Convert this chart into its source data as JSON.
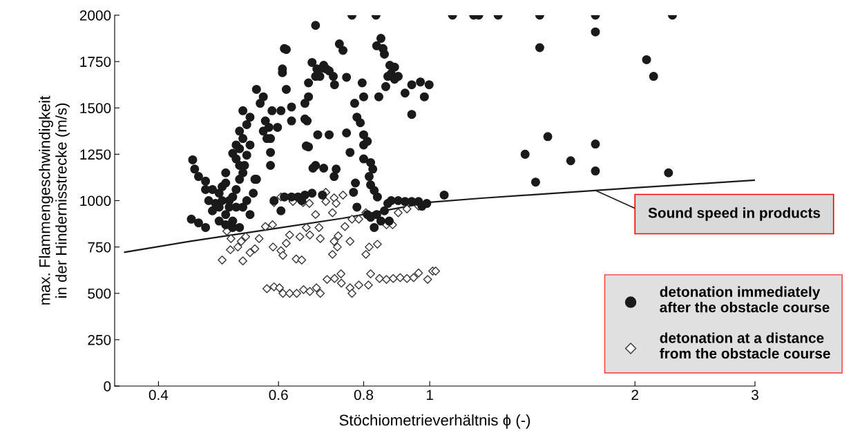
{
  "chart_data": {
    "type": "scatter",
    "xlabel": "Stöchiometrieverhältnis ϕ (-)",
    "ylabel": "max. Flammengeschwindigkeit\nin der Hindernisstrecke (m/s)",
    "log": "x",
    "xlim": [
      0.345,
      3
    ],
    "xticks": [
      0.4,
      0.6,
      0.8,
      1,
      2,
      3
    ],
    "ylim": [
      0,
      2000
    ],
    "yticks": [
      0,
      250,
      500,
      750,
      1000,
      1250,
      1500,
      1750,
      2000
    ],
    "grid": false,
    "legend": "bottom right",
    "annotations": [
      {
        "text": "Sound speed in products",
        "x": 1.75,
        "y": 1055
      }
    ],
    "series": [
      {
        "name": "detonation immediately\nafter the obstacle course",
        "marker": "circle",
        "color": "#1a1a1a",
        "x": [
          0.449,
          0.452,
          0.458,
          0.469,
          0.447,
          0.458,
          0.469,
          0.48,
          0.485,
          0.491,
          0.496,
          0.502,
          0.508,
          0.514,
          0.52,
          0.526,
          0.532,
          0.526,
          0.52,
          0.514,
          0.52,
          0.526,
          0.539,
          0.545,
          0.532,
          0.557,
          0.564,
          0.57,
          0.57,
          0.577,
          0.584,
          0.584,
          0.557,
          0.491,
          0.502,
          0.514,
          0.526,
          0.52,
          0.508,
          0.496,
          0.532,
          0.539,
          0.551,
          0.545,
          0.514,
          0.502,
          0.48,
          0.469,
          0.539,
          0.545,
          0.532,
          0.526,
          0.535,
          0.502,
          0.491,
          0.474,
          0.554,
          0.574,
          0.587,
          0.581,
          0.584,
          0.598,
          0.605,
          0.612,
          0.616,
          0.616,
          0.608,
          0.608,
          0.664,
          0.664,
          0.672,
          0.68,
          0.68,
          0.683,
          0.69,
          0.696,
          0.699,
          0.705,
          0.712,
          0.722,
          0.725,
          0.755,
          0.746,
          0.737,
          0.769,
          0.764,
          0.627,
          0.627,
          0.656,
          0.659,
          0.68,
          0.685,
          0.661,
          0.664,
          0.656,
          0.674,
          0.699,
          0.729,
          0.8,
          0.834,
          0.848,
          0.836,
          0.854,
          0.858,
          0.868,
          0.874,
          0.888,
          0.878,
          0.888,
          0.899,
          0.92,
          0.941,
          0.969,
          0.998,
          0.982,
          0.941,
          0.862,
          0.842,
          0.796,
          0.8,
          0.776,
          0.782,
          0.791,
          0.8,
          0.81,
          0.8,
          0.819,
          0.825,
          0.819,
          0.829,
          0.838,
          0.778,
          0.773,
          0.815,
          0.755,
          0.712,
          0.724,
          0.672,
          0.656,
          0.696,
          0.612,
          0.627,
          0.641,
          0.649,
          0.591,
          0.605,
          0.829,
          0.836,
          0.848,
          0.858,
          0.868,
          0.878,
          0.899,
          0.92,
          0.941,
          0.963,
          0.974,
          0.99,
          0.782,
          0.81,
          0.819,
          0.872,
          1.08,
          1.16,
          1.18,
          1.26,
          1.45,
          1.45,
          1.75,
          1.75,
          2.27,
          2.08,
          2.13,
          1.49,
          1.38,
          1.61,
          1.75,
          1.75,
          2.24,
          1.43,
          1.05
        ],
        "values": [
          1220,
          1170,
          1130,
          1105,
          900,
          880,
          855,
          945,
          985,
          1040,
          1075,
          1095,
          1000,
          1020,
          1060,
          1115,
          1150,
          1190,
          1225,
          1255,
          1300,
          1375,
          1410,
          1450,
          1485,
          1600,
          1525,
          1560,
          1375,
          1335,
          1260,
          1190,
          1115,
          965,
          925,
          890,
          855,
          965,
          965,
          1000,
          965,
          1000,
          1040,
          925,
          855,
          870,
          1060,
          1060,
          1245,
          1300,
          1335,
          1280,
          1190,
          1150,
          890,
          1000,
          1115,
          1430,
          1485,
          1395,
          1335,
          1395,
          1485,
          1820,
          1815,
          1600,
          1710,
          1690,
          1635,
          1560,
          1745,
          1945,
          1670,
          1710,
          1670,
          1715,
          1730,
          1710,
          1700,
          1670,
          1625,
          1665,
          1810,
          1845,
          2000,
          1260,
          1505,
          1430,
          1525,
          1295,
          1190,
          1355,
          1430,
          1290,
          1440,
          1175,
          1175,
          1170,
          1355,
          2000,
          1875,
          1835,
          1820,
          1790,
          1670,
          1730,
          1655,
          1685,
          1720,
          1670,
          1580,
          1625,
          1640,
          1625,
          1560,
          1465,
          1615,
          1560,
          1635,
          1560,
          1525,
          1450,
          1420,
          1300,
          1320,
          1225,
          1205,
          1170,
          1085,
          1055,
          1020,
          1095,
          1045,
          1130,
          1365,
          1355,
          1130,
          1040,
          1030,
          1030,
          1020,
          1020,
          1020,
          1000,
          1000,
          945,
          855,
          925,
          890,
          945,
          985,
          1000,
          1000,
          995,
          995,
          995,
          970,
          985,
          965,
          925,
          910,
          890,
          2000,
          2000,
          2000,
          2000,
          2000,
          1825,
          2000,
          1910,
          2000,
          1760,
          1670,
          1345,
          1250,
          1215,
          1305,
          1160,
          1150,
          1100,
          1030
        ]
      },
      {
        "name": "detonation at a distance\nfrom the obstacle course",
        "marker": "diamond",
        "color": "#333333",
        "x": [
          0.605,
          0.591,
          0.63,
          0.652,
          0.666,
          0.704,
          0.724,
          0.746,
          0.704,
          0.729,
          0.68,
          0.72,
          0.504,
          0.511,
          0.537,
          0.529,
          0.523,
          0.51,
          0.496,
          0.532,
          0.545,
          0.554,
          0.562,
          0.574,
          0.588,
          0.589,
          0.605,
          0.609,
          0.616,
          0.623,
          0.637,
          0.649,
          0.645,
          0.659,
          0.667,
          0.691,
          0.688,
          0.724,
          0.734,
          0.72,
          0.732,
          0.764,
          0.751,
          0.769,
          0.787,
          0.806,
          0.815,
          0.806,
          0.838,
          0.864,
          0.882,
          0.899,
          0.926,
          0.963,
          0.577,
          0.591,
          0.602,
          0.609,
          0.623,
          0.638,
          0.653,
          0.667,
          0.682,
          0.691,
          0.707,
          0.725,
          0.741,
          0.742,
          0.764,
          0.769,
          0.787,
          0.813,
          0.819,
          0.844,
          0.864,
          0.884,
          0.905,
          0.926,
          0.947,
          0.963,
          0.993,
          1.01,
          1.02
        ],
        "values": [
          1020,
          990,
          995,
          990,
          985,
          1045,
          1015,
          1030,
          995,
          985,
          925,
          935,
          835,
          795,
          805,
          780,
          750,
          735,
          680,
          675,
          720,
          740,
          795,
          860,
          870,
          750,
          730,
          705,
          770,
          815,
          685,
          680,
          805,
          855,
          815,
          795,
          855,
          780,
          810,
          710,
          750,
          780,
          860,
          900,
          900,
          935,
          750,
          710,
          765,
          870,
          870,
          935,
          955,
          970,
          525,
          535,
          530,
          500,
          500,
          500,
          520,
          510,
          530,
          500,
          575,
          580,
          605,
          555,
          530,
          500,
          545,
          545,
          605,
          580,
          575,
          580,
          585,
          580,
          585,
          610,
          575,
          620,
          620
        ]
      },
      {
        "type": "line",
        "color": "#1a1a1a",
        "line_style": "solid",
        "x": [
          0.357,
          0.447,
          0.591,
          0.746,
          1.0,
          1.19,
          2.0,
          3.0
        ],
        "values": [
          722,
          782,
          849,
          905,
          991,
          1013,
          1069,
          1110
        ]
      }
    ]
  }
}
